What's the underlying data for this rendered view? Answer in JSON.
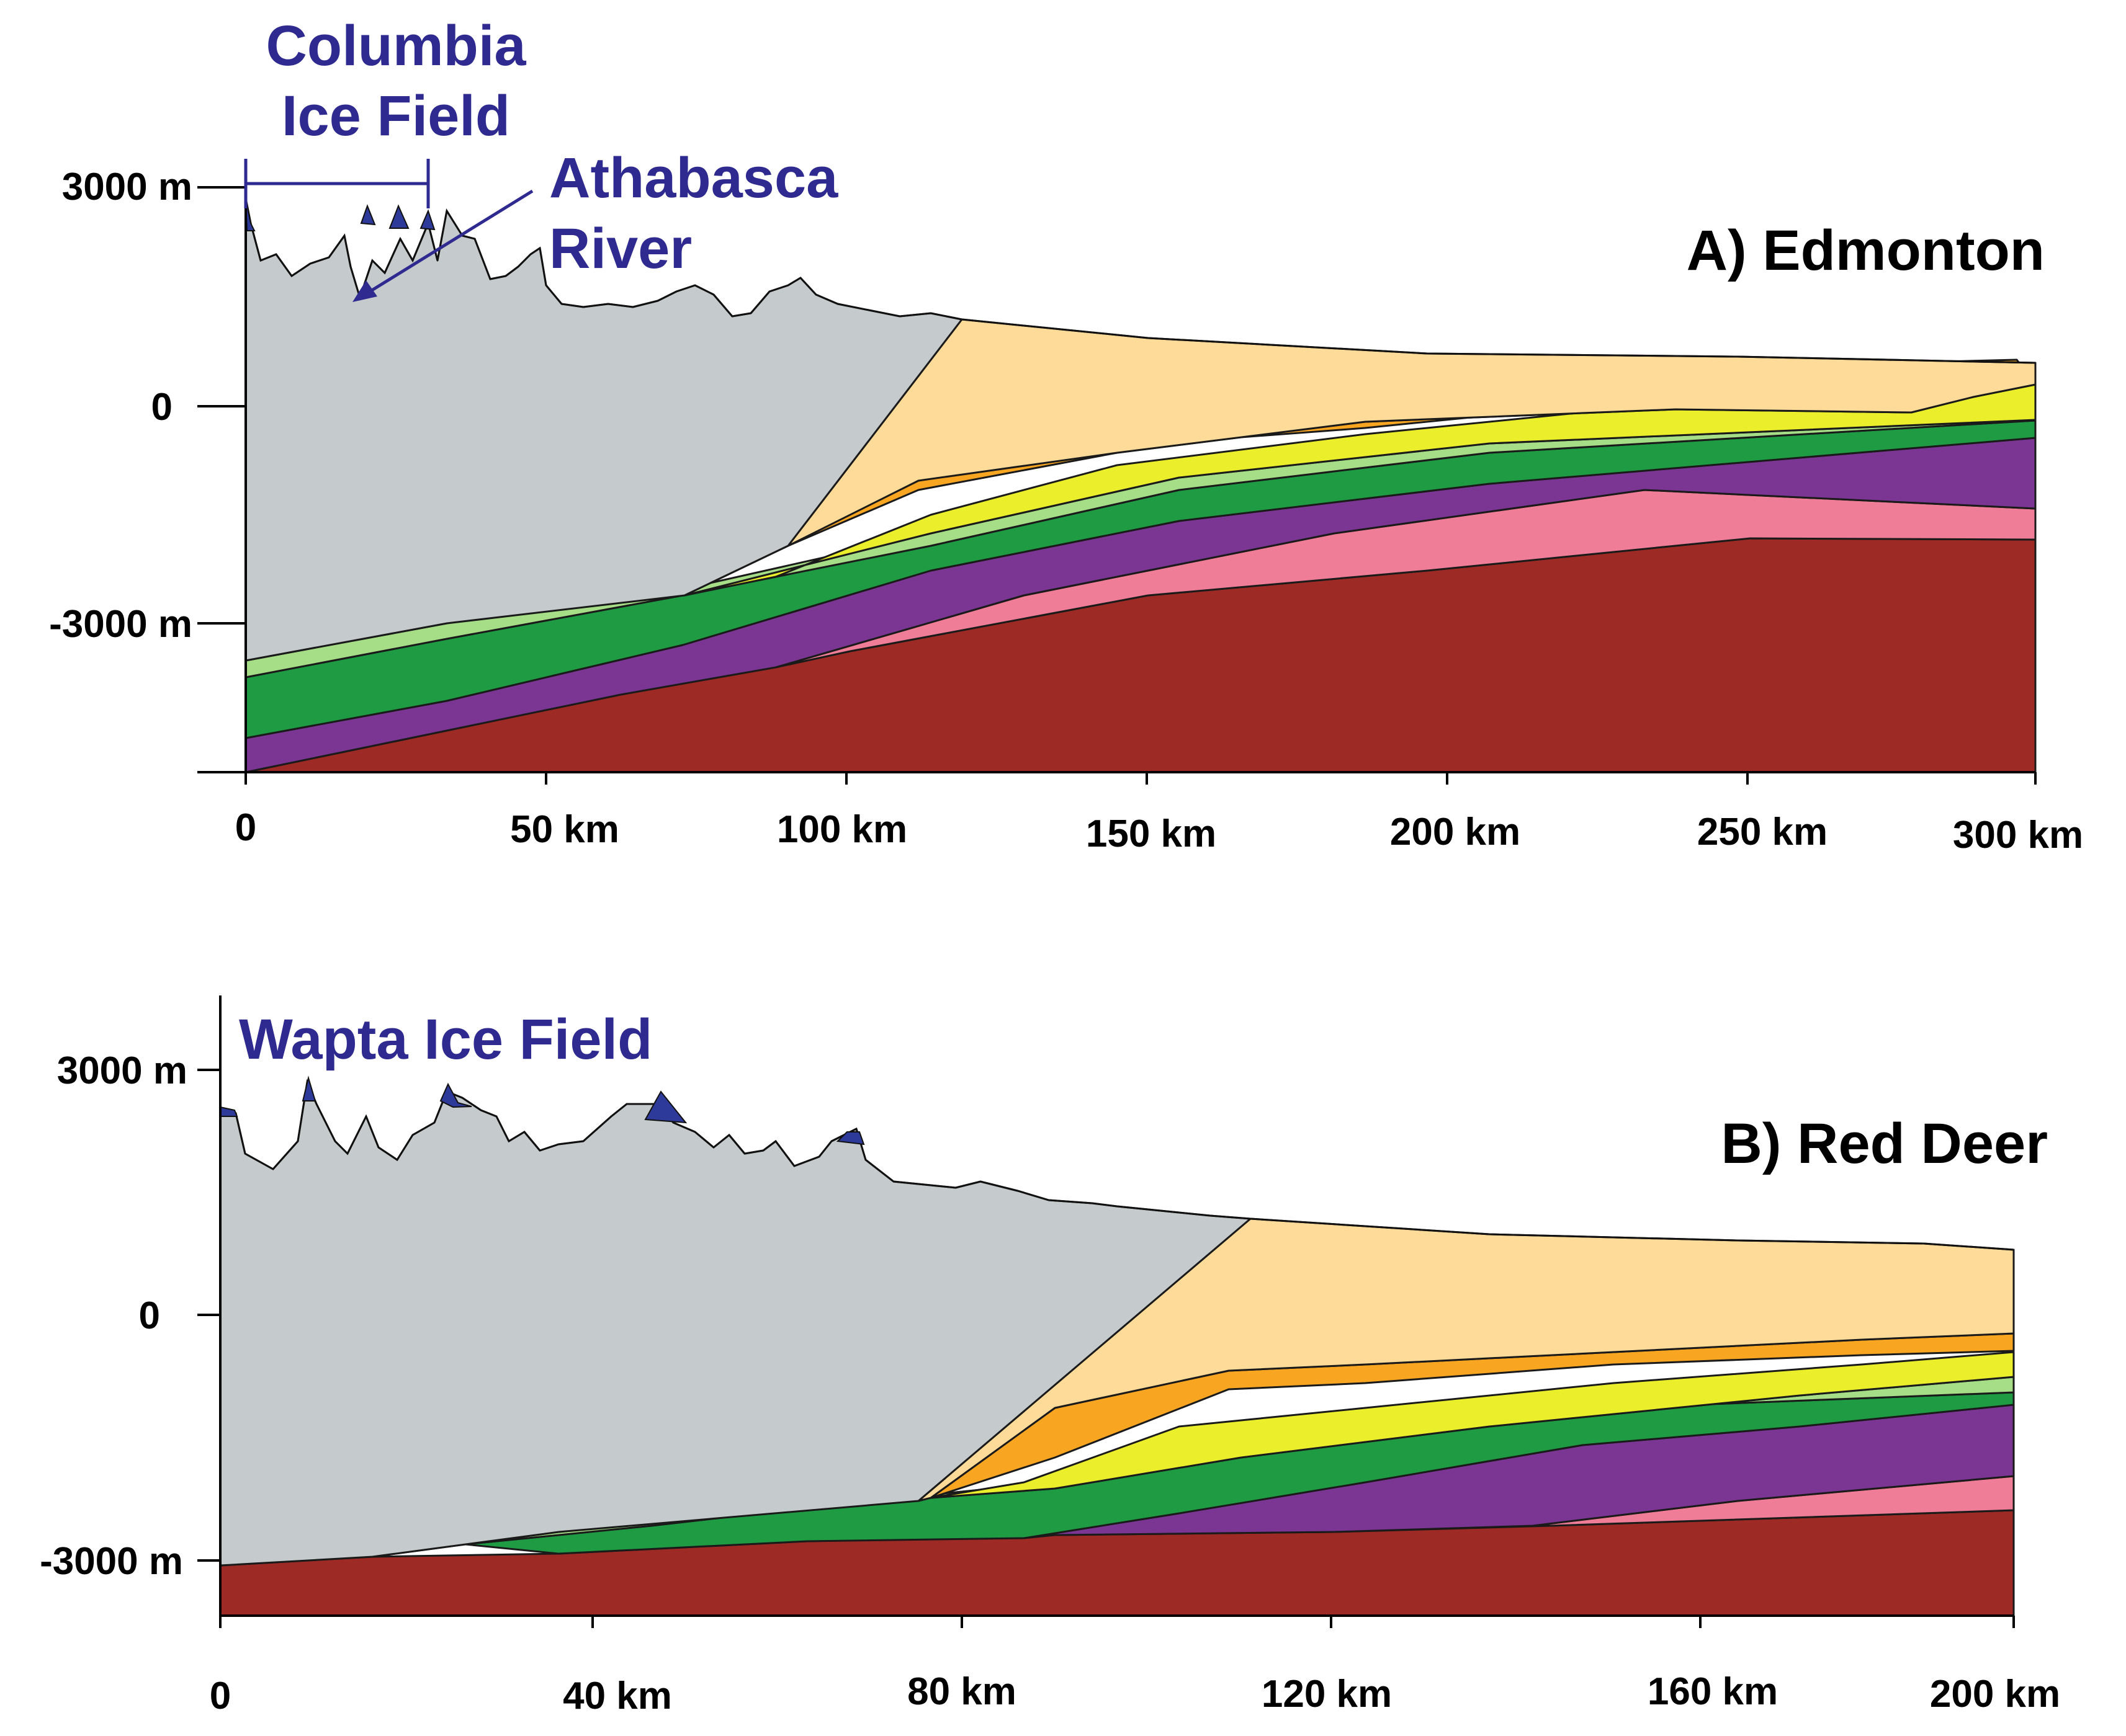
{
  "colors": {
    "annotation": "#2e2a8f",
    "ice": "#2e3a9a",
    "mountains": "#c5cacc",
    "upper_cretaceous": "#fedb98",
    "orange_unit": "#f8a622",
    "yellow_unit": "#ebee2a",
    "light_green_unit": "#a6dd87",
    "dark_green_unit": "#1e9b43",
    "purple_unit": "#7b3592",
    "pink_unit": "#f07d97",
    "basement": "#9d2a24"
  },
  "panel_a": {
    "title": "A) Edmonton",
    "y_labels": [
      "3000 m",
      "0",
      "-3000 m"
    ],
    "x_labels": [
      "0",
      "50 km",
      "100 km",
      "150 km",
      "200 km",
      "250 km",
      "300 km"
    ],
    "annotations": {
      "icefield_line1": "Columbia",
      "icefield_line2": "Ice Field",
      "river_line1": "Athabasca",
      "river_line2": "River"
    }
  },
  "panel_b": {
    "title": "B) Red Deer",
    "y_labels": [
      "3000 m",
      "0",
      "-3000 m"
    ],
    "x_labels": [
      "0",
      "40 km",
      "80 km",
      "120 km",
      "160 km",
      "200 km"
    ],
    "annotations": {
      "icefield": "Wapta Ice Field"
    }
  }
}
